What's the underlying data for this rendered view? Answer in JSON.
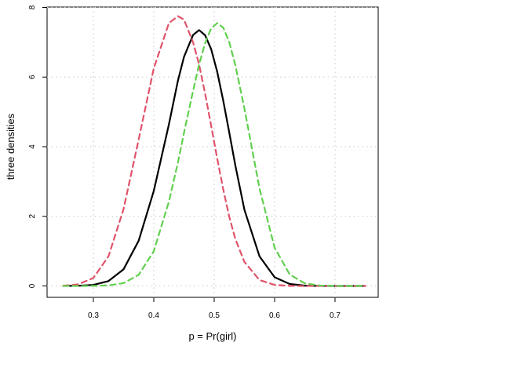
{
  "chart_data": {
    "type": "line",
    "title": "",
    "xlabel": "p = Pr(girl)",
    "ylabel": "three densities",
    "xlim": [
      0.25,
      0.75
    ],
    "ylim": [
      0,
      8
    ],
    "xticks": [
      0.3,
      0.4,
      0.5,
      0.6,
      0.7
    ],
    "xtick_labels": [
      "0.3",
      "0.4",
      "0.5",
      "0.6",
      "0.7"
    ],
    "yticks": [
      0,
      2,
      4,
      6,
      8
    ],
    "ytick_labels": [
      "0",
      "2",
      "4",
      "6",
      "8"
    ],
    "grid": true,
    "legend": "none",
    "x": [
      0.25,
      0.275,
      0.3,
      0.325,
      0.35,
      0.375,
      0.4,
      0.425,
      0.44,
      0.45,
      0.465,
      0.475,
      0.485,
      0.495,
      0.505,
      0.515,
      0.525,
      0.535,
      0.55,
      0.575,
      0.6,
      0.625,
      0.65,
      0.675,
      0.7,
      0.725,
      0.75
    ],
    "series": [
      {
        "color": "#000000",
        "style": "solid",
        "values": [
          0.001,
          0.006,
          0.03,
          0.14,
          0.48,
          1.3,
          2.73,
          4.64,
          5.9,
          6.58,
          7.21,
          7.35,
          7.2,
          6.8,
          6.15,
          5.32,
          4.4,
          3.46,
          2.19,
          0.85,
          0.25,
          0.056,
          0.009,
          0.001,
          0.0,
          0.0,
          0.0
        ]
      },
      {
        "color": "#DF536B",
        "style": "dashed",
        "values": [
          0.005,
          0.045,
          0.23,
          0.85,
          2.21,
          4.21,
          6.25,
          7.55,
          7.75,
          7.65,
          7.0,
          6.36,
          5.52,
          4.6,
          3.66,
          2.77,
          1.98,
          1.35,
          0.69,
          0.17,
          0.03,
          0.003,
          0.0,
          0.0,
          0.0,
          0.0,
          0.0
        ]
      },
      {
        "color": "#61D04F",
        "style": "dashed",
        "values": [
          0.0,
          0.0,
          0.003,
          0.016,
          0.08,
          0.32,
          1.0,
          2.42,
          3.55,
          4.4,
          5.6,
          6.36,
          6.98,
          7.4,
          7.55,
          7.42,
          7.0,
          6.34,
          5.1,
          2.8,
          1.1,
          0.33,
          0.075,
          0.013,
          0.001,
          0.0,
          0.0
        ]
      }
    ]
  }
}
